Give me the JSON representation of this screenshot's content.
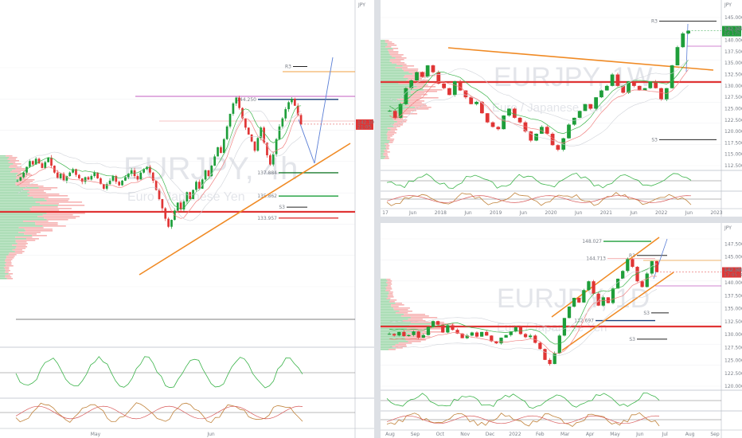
{
  "chart_data": [
    {
      "type": "candlestick",
      "panel": "left",
      "symbol": "EURJPY",
      "timeframe": ", 4h",
      "subtitle": "Euro / Japanese Yen",
      "x_ticks": [
        "May",
        "Jun"
      ],
      "price_axis": {
        "unit": "JPY",
        "range": [
          128.0,
          147.0
        ]
      },
      "levels": [
        {
          "label": "144.250",
          "value": 144.25
        },
        {
          "label": "137.884",
          "value": 137.884
        },
        {
          "label": "135.862",
          "value": 135.862
        },
        {
          "label": "133.957",
          "value": 133.957
        },
        {
          "label": "R3",
          "value": 147.1
        },
        {
          "label": "S3",
          "value": 134.9
        }
      ],
      "current_price": "142.101",
      "current_time": "21:05",
      "series": [
        {
          "values": [
            137.2,
            137.5,
            137.9,
            138.4,
            138.9,
            138.6,
            139.1,
            138.7,
            138.3,
            138.8,
            139.2,
            138.5,
            137.9,
            137.4,
            137.8,
            137.2,
            137.6,
            137.9,
            138.2,
            137.7,
            137.4,
            137.1,
            137.5,
            137.3,
            137.6,
            137.9,
            137.4,
            136.9,
            136.5,
            136.9,
            137.2,
            137.6,
            137.1,
            136.8,
            137.2,
            137.5,
            137.8,
            138.1,
            137.6,
            137.3,
            137.9,
            138.2,
            138.4,
            137.9,
            137.2,
            136.4,
            135.6,
            134.8,
            133.9,
            133.2,
            133.8,
            134.6,
            135.3,
            134.7,
            135.4,
            136.2,
            135.6,
            136.4,
            137.1,
            136.5,
            137.3,
            138.1,
            137.6,
            138.5,
            139.3,
            140.1,
            139.6,
            140.8,
            141.9,
            143.0,
            143.9,
            144.4,
            143.5,
            142.6,
            141.8,
            141.2,
            140.6,
            139.8,
            140.9,
            141.8,
            140.5,
            139.4,
            138.6,
            139.5,
            140.8,
            141.9,
            142.6,
            143.4,
            144.0,
            144.3,
            143.7,
            142.9,
            142.1
          ]
        }
      ]
    },
    {
      "type": "candlestick",
      "panel": "top-right",
      "symbol": "EURJPY",
      "timeframe": ", 1W",
      "subtitle": "Euro / Japanese Yen",
      "x_ticks": [
        "17",
        "Jun",
        "2018",
        "Jun",
        "2019",
        "Jun",
        "2020",
        "Jun",
        "2021",
        "Jun",
        "2022",
        "Jun",
        "2023"
      ],
      "y_ticks": [
        145.0,
        142.5,
        140.0,
        137.5,
        135.0,
        132.5,
        130.0,
        127.5,
        125.0,
        122.5,
        120.0,
        117.5,
        115.0,
        112.5
      ],
      "price_axis": {
        "unit": "JPY",
        "range": [
          112.5,
          145.0
        ]
      },
      "levels": [
        {
          "label": "R3",
          "value": 144.2
        },
        {
          "label": "S3",
          "value": 118.2
        }
      ],
      "current_price": "142.101",
      "current_time": "1d 17h",
      "series": [
        {
          "values": [
            124.5,
            123.0,
            126.0,
            129.5,
            131.2,
            133.0,
            132.0,
            134.5,
            133.0,
            130.5,
            129.5,
            128.0,
            131.0,
            129.0,
            127.5,
            126.0,
            126.5,
            124.0,
            122.0,
            121.0,
            120.5,
            123.5,
            125.0,
            123.0,
            122.0,
            120.0,
            118.0,
            119.5,
            121.0,
            119.5,
            117.0,
            116.0,
            118.5,
            121.5,
            123.0,
            124.5,
            126.0,
            125.0,
            127.5,
            129.0,
            130.0,
            132.5,
            130.0,
            128.5,
            131.0,
            130.0,
            129.0,
            129.5,
            131.0,
            129.5,
            127.0,
            129.5,
            134.5,
            138.5,
            141.5,
            142.1
          ]
        }
      ]
    },
    {
      "type": "candlestick",
      "panel": "bottom-right",
      "symbol": "EURJPY",
      "timeframe": ", 1D",
      "subtitle": "Euro / Japanese Yen",
      "x_ticks": [
        "Aug",
        "Sep",
        "Oct",
        "Nov",
        "Dec",
        "2022",
        "Feb",
        "Mar",
        "Apr",
        "May",
        "Jun",
        "Jul",
        "Aug",
        "Sep"
      ],
      "y_ticks": [
        147.5,
        145.0,
        142.5,
        140.0,
        137.5,
        135.0,
        132.5,
        130.0,
        127.5,
        125.0,
        122.5,
        120.0
      ],
      "price_axis": {
        "unit": "JPY",
        "range": [
          120.0,
          148.5
        ]
      },
      "levels": [
        {
          "label": "148.027",
          "value": 148.027
        },
        {
          "label": "144.713",
          "value": 144.713
        },
        {
          "label": "132.697",
          "value": 132.697
        },
        {
          "label": "R3",
          "value": 145.3
        },
        {
          "label": "S3",
          "value": 134.2
        },
        {
          "label": "S3",
          "value": 129.1
        }
      ],
      "current_price": "142.101",
      "current_time": "17:05:39",
      "series": [
        {
          "values": [
            130.1,
            129.8,
            130.5,
            129.7,
            129.9,
            130.6,
            129.4,
            129.9,
            131.5,
            132.6,
            131.9,
            130.4,
            131.8,
            130.9,
            130.2,
            129.3,
            129.8,
            130.4,
            129.6,
            130.5,
            129.8,
            128.7,
            128.3,
            129.4,
            129.9,
            130.6,
            131.4,
            130.1,
            129.5,
            129.8,
            128.4,
            127.2,
            125.1,
            124.3,
            126.4,
            129.8,
            133.2,
            135.4,
            137.1,
            136.2,
            138.6,
            140.3,
            137.9,
            135.6,
            137.2,
            136.1,
            138.9,
            140.8,
            142.3,
            144.6,
            143.1,
            140.3,
            139.2,
            141.8,
            144.2,
            142.1
          ]
        }
      ]
    }
  ]
}
